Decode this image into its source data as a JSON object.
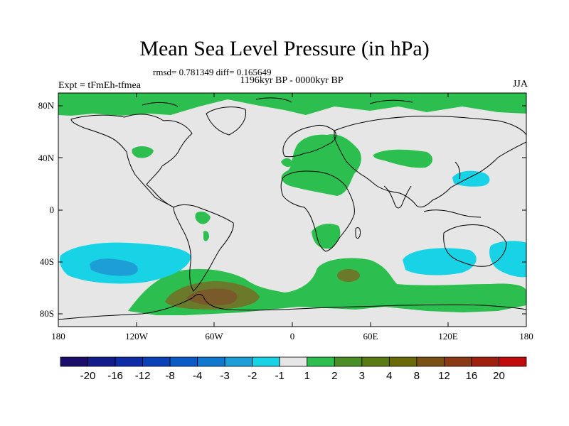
{
  "title": "Mean Sea Level Pressure (in hPa)",
  "stats": "rmsd= 0.781349 diff= 0.165649",
  "period": "1196kyr BP - 0000kyr BP",
  "experiment": "Expt = tFmEh-tfmea",
  "season": "JJA",
  "y_axis_labels": [
    "80N",
    "40N",
    "0",
    "40S",
    "80S"
  ],
  "x_axis_labels": [
    "180",
    "120W",
    "60W",
    "0",
    "60E",
    "120E",
    "180"
  ],
  "colorbar": {
    "labels": [
      "-20",
      "-16",
      "-12",
      "-8",
      "-4",
      "-3",
      "-2",
      "-1",
      "1",
      "2",
      "3",
      "4",
      "8",
      "12",
      "16",
      "20"
    ],
    "colors": [
      "#1a0e6b",
      "#121c8a",
      "#0d2ca6",
      "#0a40b8",
      "#0a5bc8",
      "#1079cf",
      "#1e9ed7",
      "#18d3e6",
      "#e6e6e6",
      "#2cbe4e",
      "#4a8f26",
      "#5a7a14",
      "#6a6a0a",
      "#7a5014",
      "#8a3a14",
      "#a02010",
      "#c00c0c"
    ]
  },
  "palette": {
    "land": "#e6e6e6",
    "pos1": "#2cbe4e",
    "pos2": "#6a7a2a",
    "pos3": "#7a5a2a",
    "neg1": "#18d3e6",
    "neg2": "#1e9ed7"
  }
}
